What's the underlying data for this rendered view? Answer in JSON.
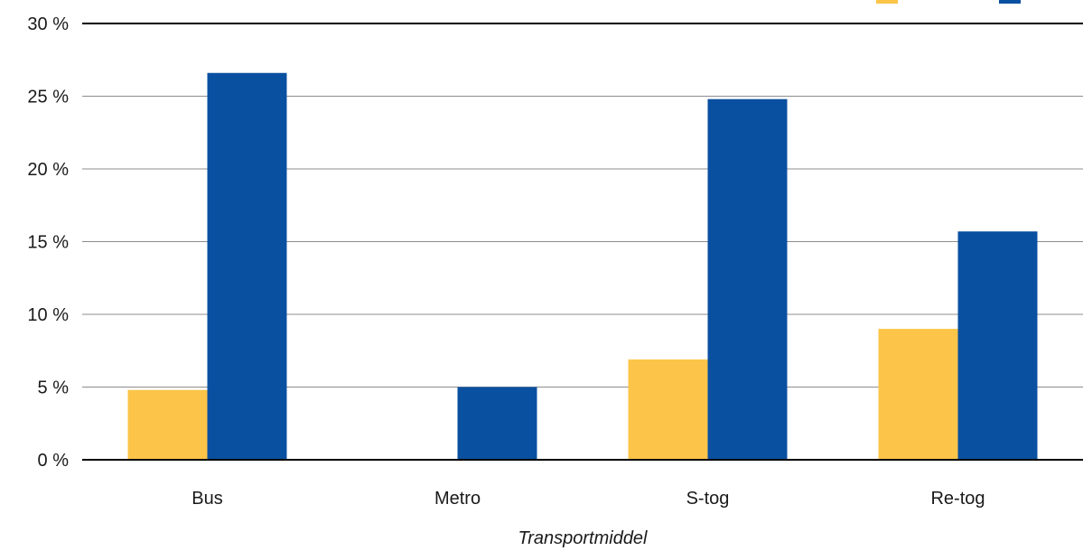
{
  "chart_data": {
    "type": "bar",
    "title": "",
    "xlabel": "Transportmiddel",
    "ylabel": "",
    "ylim": [
      0,
      30
    ],
    "yticks": [
      0,
      5,
      10,
      15,
      20,
      25,
      30
    ],
    "ytick_labels": [
      "0 %",
      "5 %",
      "10 %",
      "15 %",
      "20 %",
      "25 %",
      "30 %"
    ],
    "categories": [
      "Bus",
      "Metro",
      "S-tog",
      "Re-tog"
    ],
    "series": [
      {
        "color": "#FCC448",
        "values": [
          4.8,
          0,
          6.9,
          9.0
        ]
      },
      {
        "color": "#0A50A0",
        "values": [
          26.6,
          5.0,
          24.8,
          15.7
        ]
      }
    ],
    "legend_position": "top-right",
    "grid": true
  }
}
